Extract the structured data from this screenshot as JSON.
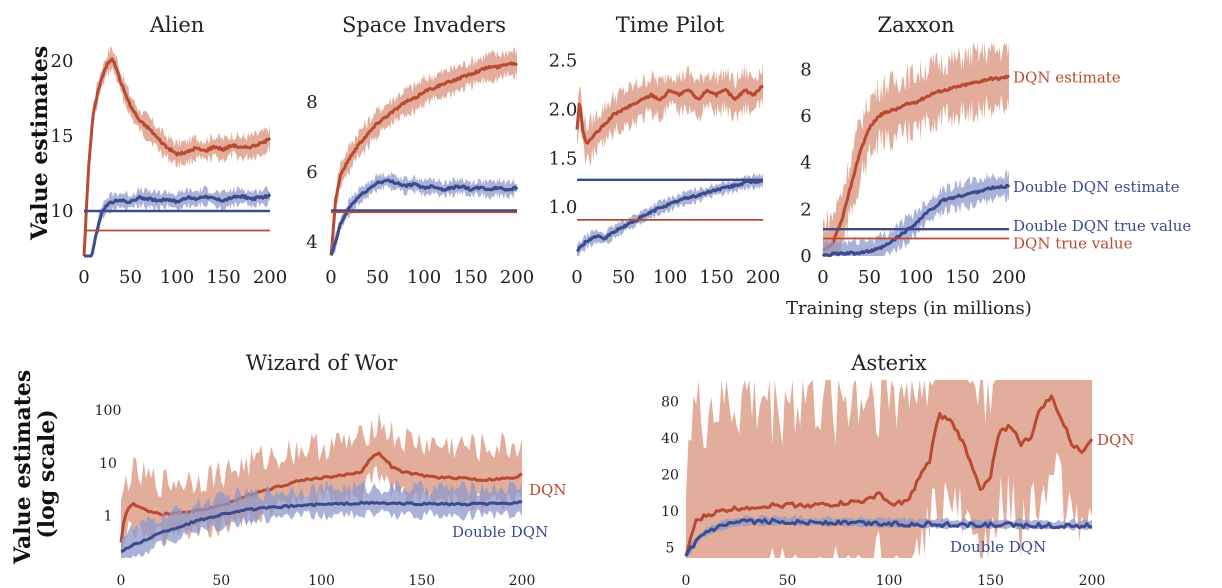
{
  "figure": {
    "ylabel_top": "Value estimates",
    "ylabel_bottom_line1": "Value estimates",
    "ylabel_bottom_line2": "(log scale)",
    "xlabel_top": "Training steps (in millions)"
  },
  "colors": {
    "dqn": "#b84a32",
    "dqn_band": "#d9917a",
    "double": "#3c4a8e",
    "double_band": "#8e98c9"
  },
  "chart_data": [
    {
      "type": "line",
      "title": "Alien",
      "xlim": [
        0,
        200
      ],
      "ylim": [
        7,
        21
      ],
      "xticks": [
        0,
        50,
        100,
        150,
        200
      ],
      "yticks": [
        10,
        15,
        20
      ],
      "series": [
        {
          "name": "DQN estimate",
          "x": [
            0,
            5,
            10,
            15,
            20,
            25,
            30,
            35,
            40,
            50,
            60,
            70,
            80,
            90,
            100,
            110,
            120,
            130,
            140,
            150,
            160,
            170,
            180,
            190,
            200
          ],
          "y": [
            7,
            13,
            16.5,
            18,
            19,
            19.8,
            20.2,
            19.5,
            18.5,
            17,
            16,
            15.5,
            14.8,
            14.2,
            13.8,
            13.9,
            14.2,
            14.0,
            14.3,
            14.1,
            14.4,
            14.2,
            14.3,
            14.5,
            14.8
          ],
          "band": 0.7
        },
        {
          "name": "Double DQN estimate",
          "x": [
            0,
            5,
            10,
            15,
            20,
            25,
            30,
            40,
            50,
            60,
            70,
            80,
            90,
            100,
            110,
            120,
            130,
            140,
            150,
            160,
            170,
            180,
            190,
            200
          ],
          "y": [
            5,
            6,
            7.5,
            9,
            10,
            10.4,
            10.6,
            10.7,
            10.6,
            10.9,
            10.8,
            10.7,
            10.8,
            10.6,
            10.9,
            10.8,
            11.0,
            10.8,
            10.7,
            10.9,
            11.0,
            10.8,
            10.9,
            11.0
          ],
          "band": 0.5
        },
        {
          "name": "Double DQN true value",
          "x": [
            0,
            200
          ],
          "y": [
            10,
            10
          ],
          "flat": true
        },
        {
          "name": "DQN true value",
          "x": [
            0,
            200
          ],
          "y": [
            8.7,
            8.7
          ],
          "flat": true
        }
      ]
    },
    {
      "type": "line",
      "title": "Space Invaders",
      "xlim": [
        0,
        200
      ],
      "ylim": [
        3.6,
        9.6
      ],
      "xticks": [
        0,
        50,
        100,
        150,
        200
      ],
      "yticks": [
        4,
        6,
        8
      ],
      "series": [
        {
          "name": "DQN estimate",
          "x": [
            0,
            5,
            10,
            20,
            30,
            40,
            50,
            60,
            70,
            80,
            90,
            100,
            110,
            120,
            130,
            140,
            150,
            160,
            170,
            180,
            190,
            200
          ],
          "y": [
            3.6,
            5.2,
            5.9,
            6.4,
            6.8,
            7.1,
            7.4,
            7.6,
            7.8,
            8.0,
            8.1,
            8.3,
            8.4,
            8.5,
            8.6,
            8.7,
            8.8,
            8.9,
            9.0,
            9.0,
            9.1,
            9.1
          ],
          "band": 0.35
        },
        {
          "name": "Double DQN estimate",
          "x": [
            0,
            5,
            10,
            20,
            30,
            40,
            50,
            60,
            70,
            80,
            90,
            100,
            110,
            120,
            130,
            140,
            150,
            160,
            170,
            180,
            190,
            200
          ],
          "y": [
            3.6,
            4.0,
            4.5,
            5.0,
            5.3,
            5.5,
            5.7,
            5.75,
            5.7,
            5.6,
            5.65,
            5.55,
            5.6,
            5.5,
            5.55,
            5.6,
            5.5,
            5.55,
            5.5,
            5.55,
            5.5,
            5.55
          ],
          "band": 0.2
        },
        {
          "name": "Double DQN true value",
          "x": [
            0,
            200
          ],
          "y": [
            4.9,
            4.9
          ],
          "flat": true
        },
        {
          "name": "DQN true value",
          "x": [
            0,
            200
          ],
          "y": [
            4.85,
            4.85
          ],
          "flat": true
        }
      ]
    },
    {
      "type": "line",
      "title": "Time Pilot",
      "xlim": [
        0,
        200
      ],
      "ylim": [
        0.5,
        2.65
      ],
      "xticks": [
        0,
        50,
        100,
        150,
        200
      ],
      "yticks": [
        1.0,
        1.5,
        2.0,
        2.5
      ],
      "series": [
        {
          "name": "DQN estimate",
          "x": [
            0,
            3,
            6,
            10,
            15,
            20,
            30,
            40,
            50,
            60,
            70,
            80,
            90,
            100,
            110,
            120,
            130,
            140,
            150,
            160,
            170,
            180,
            190,
            200
          ],
          "y": [
            1.8,
            2.1,
            1.8,
            1.65,
            1.7,
            1.75,
            1.85,
            1.95,
            2.0,
            2.05,
            2.1,
            2.15,
            2.1,
            2.2,
            2.15,
            2.2,
            2.1,
            2.2,
            2.15,
            2.2,
            2.1,
            2.2,
            2.15,
            2.25
          ],
          "band": 0.18
        },
        {
          "name": "Double DQN estimate",
          "x": [
            0,
            5,
            10,
            20,
            30,
            40,
            50,
            60,
            70,
            80,
            90,
            100,
            110,
            120,
            130,
            140,
            150,
            160,
            170,
            180,
            190,
            200
          ],
          "y": [
            0.55,
            0.6,
            0.65,
            0.7,
            0.68,
            0.75,
            0.8,
            0.85,
            0.9,
            0.95,
            1.0,
            1.03,
            1.07,
            1.1,
            1.12,
            1.15,
            1.18,
            1.2,
            1.22,
            1.25,
            1.26,
            1.27
          ],
          "band": 0.06
        },
        {
          "name": "Double DQN true value",
          "x": [
            0,
            200
          ],
          "y": [
            1.28,
            1.28
          ],
          "flat": true
        },
        {
          "name": "DQN true value",
          "x": [
            0,
            200
          ],
          "y": [
            0.87,
            0.87
          ],
          "flat": true
        }
      ]
    },
    {
      "type": "line",
      "title": "Zaxxon",
      "xlim": [
        0,
        200
      ],
      "ylim": [
        0,
        9
      ],
      "xticks": [
        0,
        50,
        100,
        150,
        200
      ],
      "yticks": [
        0,
        2,
        4,
        6,
        8
      ],
      "series": [
        {
          "name": "DQN estimate",
          "label": "DQN estimate",
          "x": [
            0,
            10,
            20,
            30,
            40,
            50,
            60,
            70,
            80,
            90,
            100,
            110,
            120,
            130,
            140,
            150,
            160,
            170,
            180,
            190,
            200
          ],
          "y": [
            0.2,
            0.5,
            1.5,
            3.0,
            4.5,
            5.5,
            6.0,
            6.2,
            6.3,
            6.5,
            6.6,
            6.8,
            7.0,
            7.1,
            7.2,
            7.3,
            7.4,
            7.5,
            7.6,
            7.6,
            7.7
          ],
          "band": 1.2
        },
        {
          "name": "Double DQN estimate",
          "label": "Double DQN estimate",
          "x": [
            0,
            10,
            20,
            30,
            40,
            50,
            60,
            70,
            80,
            90,
            100,
            110,
            120,
            130,
            140,
            150,
            160,
            170,
            180,
            190,
            200
          ],
          "y": [
            0.05,
            0.08,
            0.1,
            0.12,
            0.15,
            0.2,
            0.3,
            0.5,
            0.8,
            1.1,
            1.4,
            1.8,
            2.1,
            2.4,
            2.5,
            2.6,
            2.7,
            2.8,
            2.9,
            2.95,
            3.0
          ],
          "band": 0.5
        },
        {
          "name": "Double DQN true value",
          "label": "Double DQN true value",
          "x": [
            0,
            200
          ],
          "y": [
            1.15,
            1.15
          ],
          "flat": true
        },
        {
          "name": "DQN true value",
          "label": "DQN true value",
          "x": [
            0,
            200
          ],
          "y": [
            0.75,
            0.75
          ],
          "flat": true
        }
      ]
    },
    {
      "type": "line",
      "title": "Wizard of Wor",
      "yscale": "log",
      "xlim": [
        0,
        200
      ],
      "ylim": [
        0.15,
        300
      ],
      "xticks": [
        0,
        50,
        100,
        150,
        200
      ],
      "yticks": [
        1,
        10,
        100
      ],
      "series": [
        {
          "name": "DQN",
          "label": "DQN",
          "x": [
            0,
            3,
            6,
            10,
            20,
            30,
            40,
            50,
            60,
            70,
            80,
            90,
            100,
            110,
            120,
            128,
            135,
            140,
            150,
            160,
            170,
            180,
            190,
            198,
            200
          ],
          "y": [
            0.3,
            1.2,
            1.6,
            1.3,
            1.0,
            1.1,
            1.2,
            1.5,
            2.0,
            2.8,
            3.5,
            4.5,
            5.0,
            5.5,
            6.5,
            15,
            8,
            6.5,
            5.5,
            5.0,
            5.0,
            4.5,
            4.8,
            5.0,
            6.0
          ],
          "band": 0.6
        },
        {
          "name": "Double DQN",
          "label": "Double DQN",
          "x": [
            0,
            5,
            10,
            20,
            30,
            40,
            50,
            60,
            70,
            80,
            90,
            100,
            110,
            120,
            130,
            140,
            150,
            160,
            170,
            180,
            190,
            200
          ],
          "y": [
            0.2,
            0.25,
            0.3,
            0.45,
            0.6,
            0.8,
            1.0,
            1.2,
            1.3,
            1.4,
            1.5,
            1.55,
            1.6,
            1.65,
            1.65,
            1.6,
            1.6,
            1.6,
            1.55,
            1.6,
            1.6,
            1.7
          ],
          "band": 0.3
        }
      ]
    },
    {
      "type": "line",
      "title": "Asterix",
      "yscale": "log",
      "xlim": [
        0,
        200
      ],
      "ylim": [
        4,
        110
      ],
      "xticks": [
        0,
        50,
        100,
        150,
        200
      ],
      "yticks": [
        5,
        10,
        20,
        40,
        80
      ],
      "series": [
        {
          "name": "DQN",
          "label": "DQN",
          "x": [
            0,
            5,
            10,
            20,
            30,
            40,
            50,
            60,
            70,
            80,
            90,
            95,
            100,
            110,
            120,
            125,
            130,
            135,
            140,
            145,
            150,
            155,
            160,
            165,
            170,
            175,
            180,
            185,
            190,
            195,
            200
          ],
          "y": [
            4,
            8,
            9,
            10,
            10.5,
            10.8,
            11,
            11,
            11,
            11.5,
            12,
            14,
            11,
            12,
            25,
            60,
            55,
            40,
            25,
            15,
            18,
            45,
            50,
            35,
            40,
            70,
            85,
            55,
            35,
            30,
            40
          ],
          "band": 0.9
        },
        {
          "name": "Double DQN",
          "label": "Double DQN",
          "x": [
            0,
            5,
            10,
            20,
            30,
            40,
            50,
            60,
            80,
            100,
            120,
            140,
            160,
            180,
            200
          ],
          "y": [
            4,
            5.5,
            6.5,
            7.5,
            8,
            8,
            8,
            7.9,
            7.8,
            7.7,
            7.6,
            7.5,
            7.5,
            7.4,
            7.4
          ],
          "band": 0.04
        }
      ]
    }
  ]
}
